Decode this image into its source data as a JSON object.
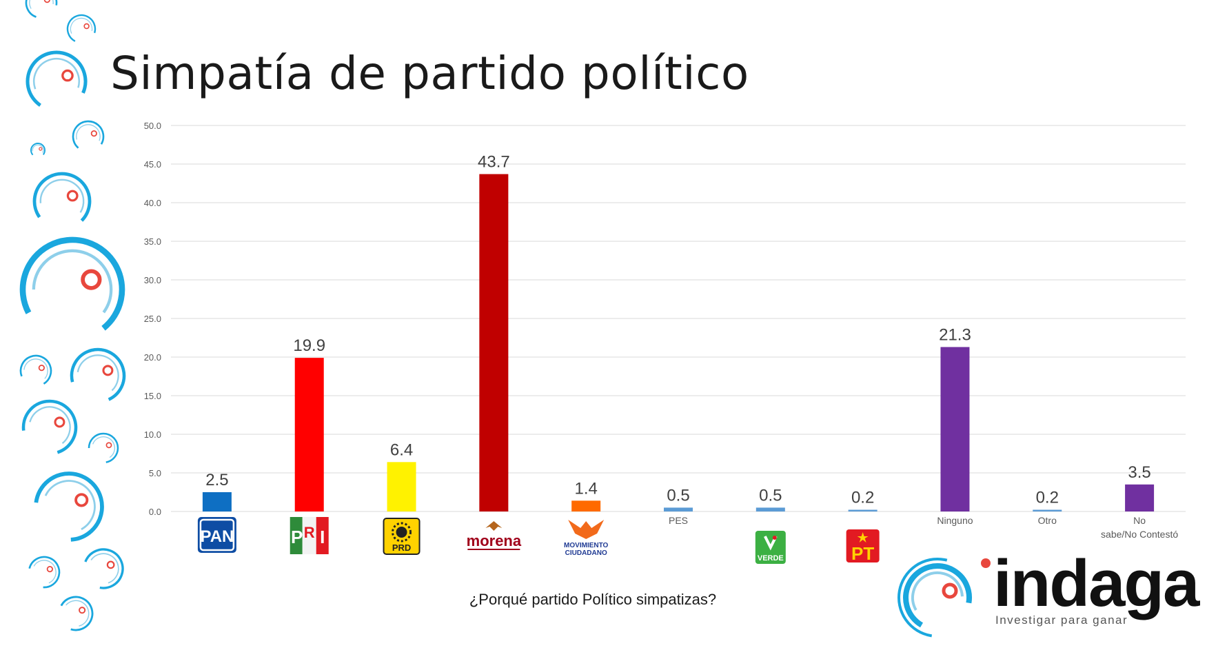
{
  "title": "Simpatía de partido político",
  "chart_data": {
    "type": "bar",
    "title": "Simpatía de partido político",
    "xlabel": "¿Porqué partido Político simpatizas?",
    "ylabel": "",
    "ylim": [
      0,
      50
    ],
    "yticks": [
      "0.0",
      "5.0",
      "10.0",
      "15.0",
      "20.0",
      "25.0",
      "30.0",
      "35.0",
      "40.0",
      "45.0",
      "50.0"
    ],
    "grid": true,
    "categories": [
      "PAN",
      "PRI",
      "PRD",
      "morena",
      "MOVIMIENTO CIUDADANO",
      "PES",
      "VERDE",
      "PT",
      "Ninguno",
      "Otro",
      "No sabe/No Contestó"
    ],
    "values": [
      2.5,
      19.9,
      6.4,
      43.7,
      1.4,
      0.5,
      0.5,
      0.2,
      21.3,
      0.2,
      3.5
    ],
    "labels": [
      "2.5",
      "19.9",
      "6.4",
      "43.7",
      "1.4",
      "0.5",
      "0.5",
      "0.2",
      "21.3",
      "0.2",
      "3.5"
    ],
    "colors": [
      "#0E6FC3",
      "#FF0000",
      "#FFF200",
      "#C00000",
      "#FF6A00",
      "#5B9BD5",
      "#5B9BD5",
      "#5B9BD5",
      "#7030A0",
      "#5B9BD5",
      "#7030A0"
    ],
    "category_display": [
      "logo",
      "logo",
      "logo",
      "logo",
      "logo",
      "text",
      "logo",
      "logo",
      "text",
      "text",
      "text"
    ]
  },
  "logos": {
    "pan": "PAN",
    "pri": [
      "P",
      "R",
      "I"
    ],
    "prd": "PRD",
    "morena": "morena",
    "mc": [
      "MOVIMIENTO",
      "CIUDADANO"
    ],
    "verde": "VERDE",
    "pt": "PT"
  },
  "brand": {
    "name": "indaga",
    "tagline": "Investigar para ganar"
  },
  "colors": {
    "accent_blue": "#1AA7DE",
    "accent_red": "#E8473D",
    "grid": "#D9D9D9"
  }
}
